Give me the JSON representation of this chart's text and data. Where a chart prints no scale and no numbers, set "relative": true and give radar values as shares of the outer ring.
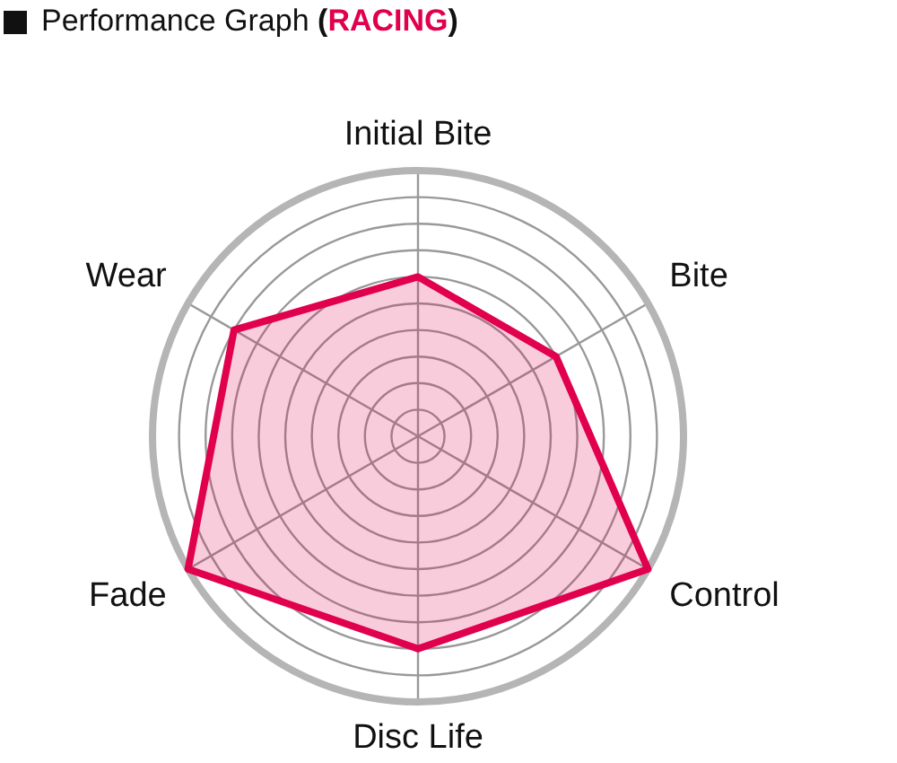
{
  "chart_data": {
    "type": "radar",
    "title": "Performance Graph (RACING)",
    "relative": true,
    "grid": true,
    "categories": [
      "Initial Bite",
      "Bite",
      "Control",
      "Disc Life",
      "Fade",
      "Wear"
    ],
    "series": [
      {
        "color": "#e0004d",
        "values": [
          0.6,
          0.6,
          1,
          0.8,
          1,
          0.8
        ]
      }
    ]
  }
}
